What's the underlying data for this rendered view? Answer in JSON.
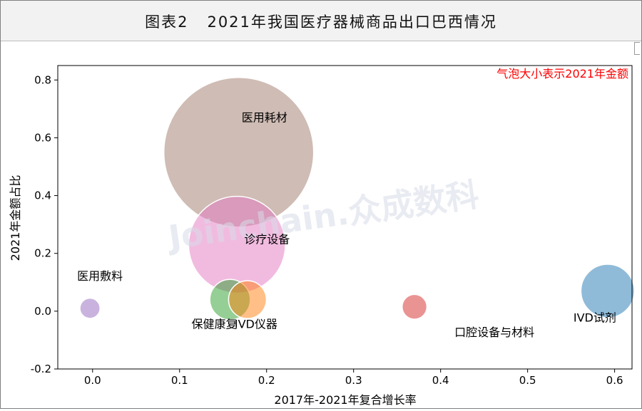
{
  "figure": {
    "title": "图表2   2021年我国医疗器械商品出口巴西情况",
    "watermark": "Joinchain.众成数科"
  },
  "chart_data": {
    "type": "scatter",
    "subtype": "bubble",
    "title": "",
    "xlabel": "2017年-2021年复合增长率",
    "ylabel": "2021年金额占比",
    "annotation": "气泡大小表示2021年金额",
    "annotation_color": "#ff0000",
    "xlim": [
      -0.04,
      0.62
    ],
    "ylim": [
      -0.2,
      0.85
    ],
    "xticks": [
      0.0,
      0.1,
      0.2,
      0.3,
      0.4,
      0.5,
      0.6
    ],
    "xtick_labels": [
      "0.0",
      "0.1",
      "0.2",
      "0.3",
      "0.4",
      "0.5",
      "0.6"
    ],
    "yticks": [
      -0.2,
      0.0,
      0.2,
      0.4,
      0.6,
      0.8
    ],
    "ytick_labels": [
      "-0.2",
      "0.0",
      "0.2",
      "0.4",
      "0.6",
      "0.8"
    ],
    "grid": false,
    "series": [
      {
        "name": "医用耗材",
        "x": 0.168,
        "y": 0.55,
        "size": 0.55,
        "color": "#a0796a"
      },
      {
        "name": "诊疗设备",
        "x": 0.166,
        "y": 0.23,
        "size": 0.23,
        "color": "#e377c2"
      },
      {
        "name": "保健康复",
        "x": 0.158,
        "y": 0.04,
        "size": 0.04,
        "color": "#2ca02c"
      },
      {
        "name": "IVD仪器",
        "x": 0.178,
        "y": 0.04,
        "size": 0.035,
        "color": "#ff7f0e"
      },
      {
        "name": "医用敷料",
        "x": -0.003,
        "y": 0.01,
        "size": 0.01,
        "color": "#9467bd"
      },
      {
        "name": "口腔设备与材料",
        "x": 0.37,
        "y": 0.015,
        "size": 0.015,
        "color": "#d62728"
      },
      {
        "name": "IVD试剂",
        "x": 0.592,
        "y": 0.07,
        "size": 0.07,
        "color": "#1f77b4"
      }
    ]
  }
}
